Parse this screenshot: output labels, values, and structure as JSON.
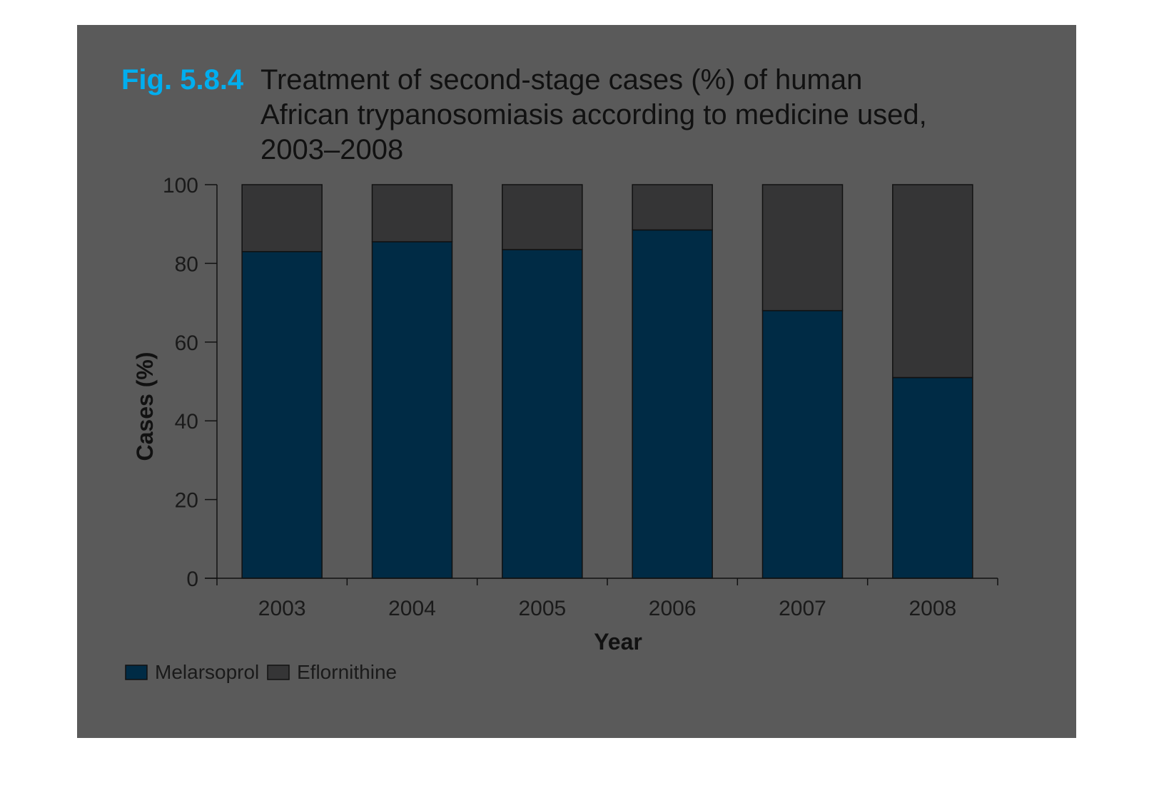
{
  "figure": {
    "fig_label": "Fig. 5.8.4",
    "title_lines": [
      "Treatment of second-stage cases (%) of human",
      "African trypanosomiasis according to medicine used,",
      "2003–2008"
    ]
  },
  "colors": {
    "panel_background": "#5a5a5a",
    "melarsoprol": "#002b45",
    "eflornithine": "#353536",
    "accent": "#00aeef"
  },
  "chart_data": {
    "type": "bar",
    "stacked": true,
    "xlabel": "Year",
    "ylabel": "Cases (%)",
    "ylim": [
      0,
      100
    ],
    "yticks": [
      0,
      20,
      40,
      60,
      80,
      100
    ],
    "categories": [
      "2003",
      "2004",
      "2005",
      "2006",
      "2007",
      "2008"
    ],
    "series": [
      {
        "name": "Melarsoprol",
        "color": "#002b45",
        "values": [
          83,
          85.5,
          83.5,
          88.5,
          68,
          51
        ]
      },
      {
        "name": "Eflornithine",
        "color": "#353536",
        "values": [
          17,
          14.5,
          16.5,
          11.5,
          32,
          49
        ]
      }
    ],
    "legend_position": "bottom-left",
    "grid": false
  }
}
